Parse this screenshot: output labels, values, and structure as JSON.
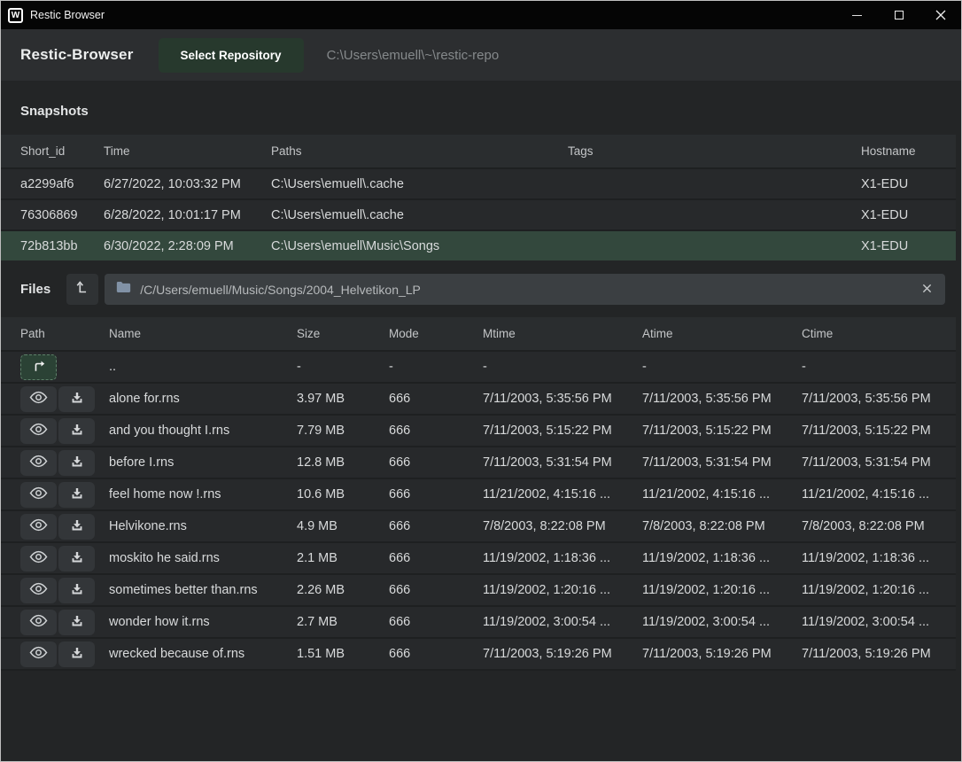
{
  "window": {
    "title": "Restic Browser",
    "logo_letter": "W"
  },
  "header": {
    "app_name": "Restic-Browser",
    "select_repo_label": "Select Repository",
    "repo_path": "C:\\Users\\emuell\\~\\restic-repo"
  },
  "colors": {
    "accent_green": "#27392d",
    "selected_row_green": "#33483d",
    "background": "#232526",
    "titlebar": "#050505"
  },
  "snapshots": {
    "heading": "Snapshots",
    "columns": [
      "Short_id",
      "Time",
      "Paths",
      "Tags",
      "Hostname"
    ],
    "rows": [
      {
        "short_id": "a2299af6",
        "time": "6/27/2022, 10:03:32 PM",
        "paths": "C:\\Users\\emuell\\.cache",
        "tags": "",
        "hostname": "X1-EDU",
        "selected": false
      },
      {
        "short_id": "76306869",
        "time": "6/28/2022, 10:01:17 PM",
        "paths": "C:\\Users\\emuell\\.cache",
        "tags": "",
        "hostname": "X1-EDU",
        "selected": false
      },
      {
        "short_id": "72b813bb",
        "time": "6/30/2022, 2:28:09 PM",
        "paths": "C:\\Users\\emuell\\Music\\Songs",
        "tags": "",
        "hostname": "X1-EDU",
        "selected": true
      }
    ]
  },
  "files": {
    "heading": "Files",
    "breadcrumb_path": "/C/Users/emuell/Music/Songs/2004_Helvetikon_LP",
    "columns": [
      "Path",
      "Name",
      "Size",
      "Mode",
      "Mtime",
      "Atime",
      "Ctime"
    ],
    "parent_row": {
      "name": "..",
      "size": "-",
      "mode": "-",
      "mtime": "-",
      "atime": "-",
      "ctime": "-"
    },
    "rows": [
      {
        "name": "alone for.rns",
        "size": "3.97 MB",
        "mode": "666",
        "mtime": "7/11/2003, 5:35:56 PM",
        "atime": "7/11/2003, 5:35:56 PM",
        "ctime": "7/11/2003, 5:35:56 PM"
      },
      {
        "name": "and you thought I.rns",
        "size": "7.79 MB",
        "mode": "666",
        "mtime": "7/11/2003, 5:15:22 PM",
        "atime": "7/11/2003, 5:15:22 PM",
        "ctime": "7/11/2003, 5:15:22 PM"
      },
      {
        "name": "before I.rns",
        "size": "12.8 MB",
        "mode": "666",
        "mtime": "7/11/2003, 5:31:54 PM",
        "atime": "7/11/2003, 5:31:54 PM",
        "ctime": "7/11/2003, 5:31:54 PM"
      },
      {
        "name": "feel home now !.rns",
        "size": "10.6 MB",
        "mode": "666",
        "mtime": "11/21/2002, 4:15:16 ...",
        "atime": "11/21/2002, 4:15:16 ...",
        "ctime": "11/21/2002, 4:15:16 ..."
      },
      {
        "name": "Helvikone.rns",
        "size": "4.9 MB",
        "mode": "666",
        "mtime": "7/8/2003, 8:22:08 PM",
        "atime": "7/8/2003, 8:22:08 PM",
        "ctime": "7/8/2003, 8:22:08 PM"
      },
      {
        "name": "moskito he said.rns",
        "size": "2.1 MB",
        "mode": "666",
        "mtime": "11/19/2002, 1:18:36 ...",
        "atime": "11/19/2002, 1:18:36 ...",
        "ctime": "11/19/2002, 1:18:36 ..."
      },
      {
        "name": "sometimes better than.rns",
        "size": "2.26 MB",
        "mode": "666",
        "mtime": "11/19/2002, 1:20:16 ...",
        "atime": "11/19/2002, 1:20:16 ...",
        "ctime": "11/19/2002, 1:20:16 ..."
      },
      {
        "name": "wonder how it.rns",
        "size": "2.7 MB",
        "mode": "666",
        "mtime": "11/19/2002, 3:00:54 ...",
        "atime": "11/19/2002, 3:00:54 ...",
        "ctime": "11/19/2002, 3:00:54 ..."
      },
      {
        "name": "wrecked because of.rns",
        "size": "1.51 MB",
        "mode": "666",
        "mtime": "7/11/2003, 5:19:26 PM",
        "atime": "7/11/2003, 5:19:26 PM",
        "ctime": "7/11/2003, 5:19:26 PM"
      }
    ]
  }
}
